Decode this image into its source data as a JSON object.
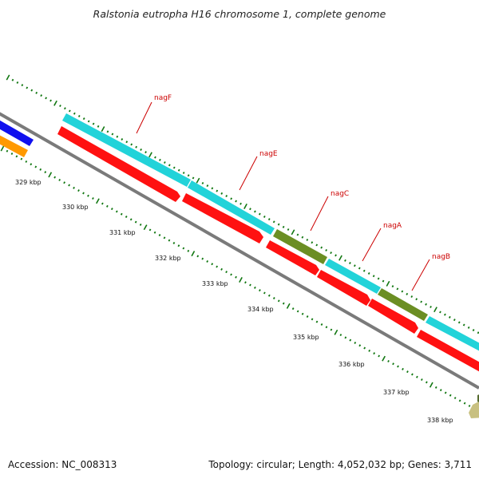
{
  "title": "Ralstonia eutropha H16 chromosome 1, complete genome",
  "footer": {
    "accession": "Accession: NC_008313",
    "summary": "Topology: circular; Length: 4,052,032 bp; Genes: 3,711"
  },
  "kbp_ticks": [
    "329 kbp",
    "330 kbp",
    "331 kbp",
    "332 kbp",
    "333 kbp",
    "334 kbp",
    "335 kbp",
    "336 kbp",
    "337 kbp",
    "338 kbp"
  ],
  "gene_labels": [
    "nagF",
    "nagE",
    "nagC",
    "nagA",
    "nagB"
  ],
  "colors": {
    "backbone": "#808080",
    "forward_strand_cds": "#22d3d9",
    "reverse_strand_cds": "#ff1111",
    "olive_feature": "#6b8e23",
    "orange_feature": "#ff9900",
    "blue_feature": "#1010ee",
    "khaki_feature": "#c8c080",
    "tick_marks": "#117711",
    "gene_label_text": "#cc0000"
  }
}
